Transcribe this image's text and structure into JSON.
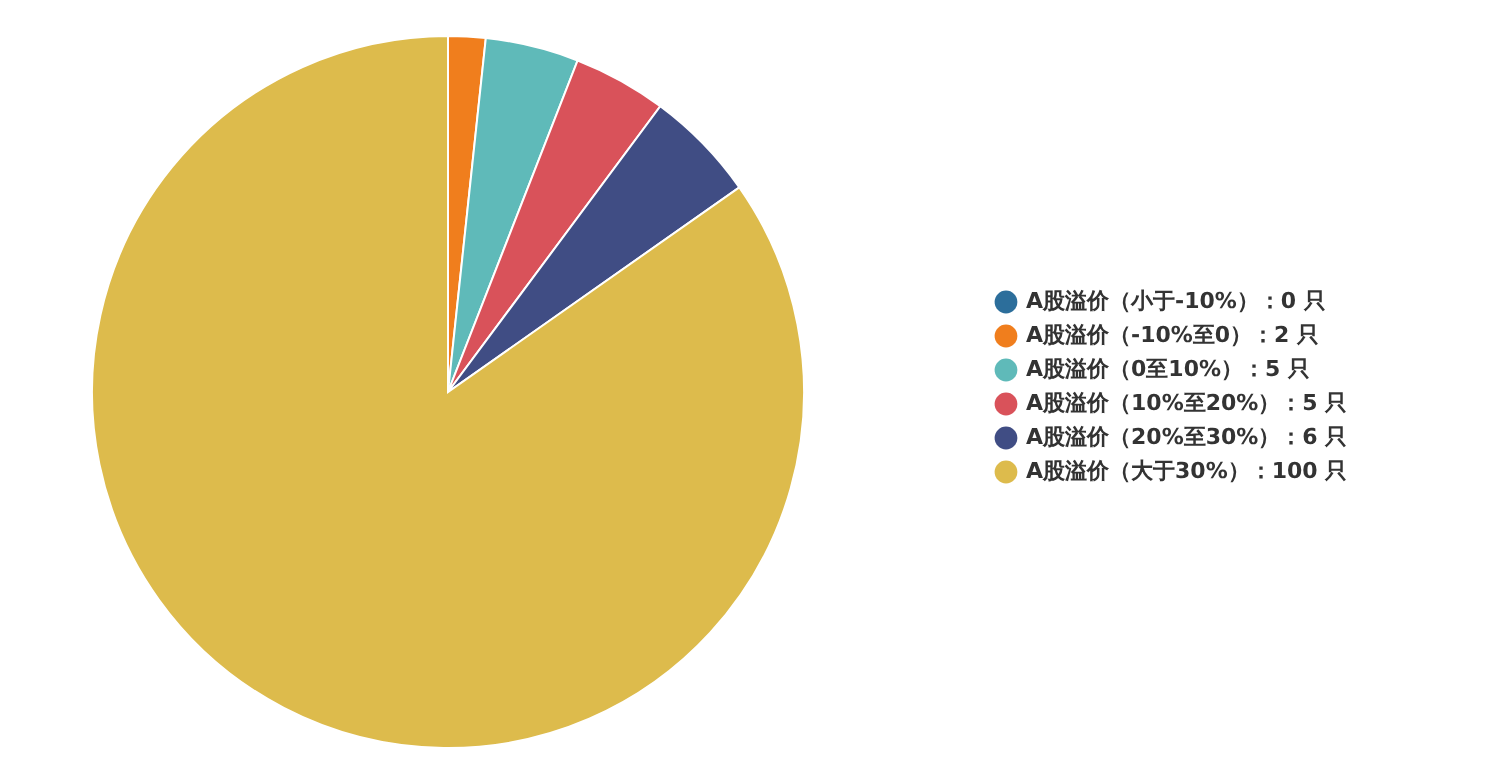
{
  "chart_data": {
    "type": "pie",
    "categories": [
      "A股溢价（小于-10%）：0 只",
      "A股溢价（-10%至0）：2 只",
      "A股溢价（0至10%）：5 只",
      "A股溢价（10%至20%）：5 只",
      "A股溢价（20%至30%）：6 只",
      "A股溢价（大于30%）：100 只"
    ],
    "values": [
      0,
      2,
      5,
      5,
      6,
      100
    ],
    "colors": [
      "#2c6e9b",
      "#f07e1d",
      "#5fbab9",
      "#d9525a",
      "#404d84",
      "#ddbb4c"
    ],
    "legend": "right"
  }
}
